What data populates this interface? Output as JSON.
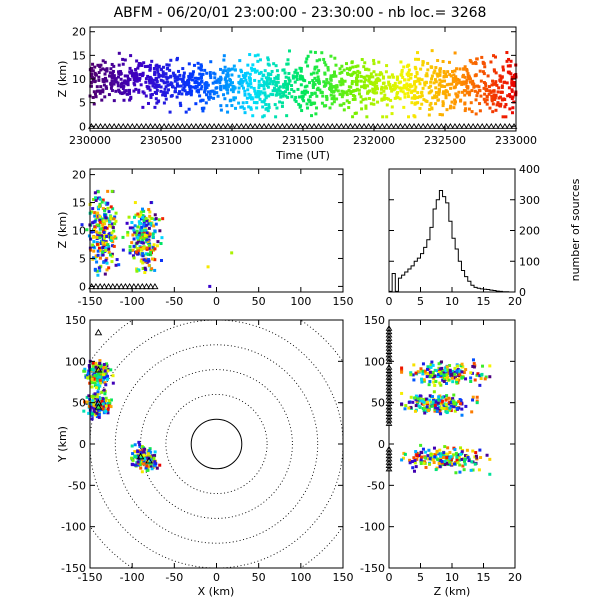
{
  "title": "ABFM - 06/20/01 23:00:00 - 23:30:00 - nb loc.=    3268",
  "chart_data": [
    {
      "id": "time-height",
      "type": "scatter",
      "xlabel": "Time (UT)",
      "ylabel": "Z (km)",
      "xlim": [
        230000,
        233000
      ],
      "ylim": [
        -1,
        21
      ],
      "xticks": [
        "230000",
        "230500",
        "231000",
        "231500",
        "232000",
        "232500",
        "233000"
      ],
      "yticks": [
        "0",
        "5",
        "10",
        "15",
        "20"
      ],
      "color_by": "time (violet → red)",
      "point_groups": [
        {
          "x_range": [
            230000,
            230500
          ],
          "z_range": [
            5,
            14
          ]
        },
        {
          "x_range": [
            230500,
            231000
          ],
          "z_range": [
            4,
            14
          ]
        },
        {
          "x_range": [
            231000,
            231500
          ],
          "z_range": [
            3,
            14
          ]
        },
        {
          "x_range": [
            231500,
            232000
          ],
          "z_range": [
            3,
            14
          ]
        },
        {
          "x_range": [
            232000,
            232500
          ],
          "z_range": [
            3,
            14
          ]
        },
        {
          "x_range": [
            232500,
            233000
          ],
          "z_range": [
            3,
            14
          ]
        }
      ],
      "triangle_markers_at_z": 0
    },
    {
      "id": "x-height",
      "type": "scatter",
      "ylabel": "Z (km)",
      "xlim": [
        -150,
        150
      ],
      "ylim": [
        -1,
        21
      ],
      "xticks": [
        "-150",
        "-100",
        "-50",
        "0",
        "50",
        "100",
        "150"
      ],
      "yticks": [
        "0",
        "5",
        "10",
        "15",
        "20"
      ],
      "clusters": [
        {
          "x_center": -135,
          "z_range": [
            2,
            17
          ]
        },
        {
          "x_center": -85,
          "z_range": [
            2,
            15
          ]
        }
      ],
      "isolated_points": [
        [
          -10,
          3.5
        ],
        [
          -8,
          0
        ],
        [
          18,
          6
        ]
      ],
      "triangle_markers_at_z": 0
    },
    {
      "id": "height-histogram",
      "type": "line",
      "ylabel": "number of sources",
      "xlim": [
        0,
        20
      ],
      "ylim": [
        0,
        400
      ],
      "xticks": [
        "0",
        "5",
        "10",
        "15",
        "20"
      ],
      "yticks": [
        "0",
        "100",
        "200",
        "300",
        "400"
      ],
      "x": [
        0.5,
        1,
        1.5,
        2,
        2.5,
        3,
        3.5,
        4,
        4.5,
        5,
        5.5,
        6,
        6.5,
        7,
        7.5,
        8,
        8.5,
        9,
        9.5,
        10,
        10.5,
        11,
        11.5,
        12,
        12.5,
        13,
        13.5,
        14,
        14.5,
        15,
        15.5,
        16,
        16.5,
        17,
        17.5,
        18,
        18.5,
        19,
        19.5,
        20
      ],
      "values": [
        2,
        60,
        2,
        45,
        55,
        65,
        75,
        85,
        100,
        110,
        125,
        145,
        170,
        210,
        270,
        300,
        330,
        310,
        290,
        230,
        175,
        140,
        100,
        70,
        50,
        35,
        22,
        15,
        12,
        10,
        9,
        8,
        6,
        5,
        3,
        2,
        1,
        1,
        0,
        0
      ]
    },
    {
      "id": "plan-view",
      "type": "scatter",
      "xlabel": "X (km)",
      "ylabel": "Y (km)",
      "xlim": [
        -150,
        150
      ],
      "ylim": [
        -150,
        150
      ],
      "xticks": [
        "-150",
        "-100",
        "-50",
        "0",
        "50",
        "100",
        "150"
      ],
      "yticks": [
        "-150",
        "-100",
        "-50",
        "0",
        "50",
        "100",
        "150"
      ],
      "range_rings_km": [
        30,
        60,
        90,
        120,
        150,
        180
      ],
      "clusters": [
        {
          "x_center": -140,
          "y_center": 85
        },
        {
          "x_center": -140,
          "y_center": 48
        },
        {
          "x_center": -85,
          "y_center": -18
        }
      ],
      "triangle_markers": [
        [
          -140,
          135
        ],
        [
          -140,
          90
        ],
        [
          -140,
          50
        ],
        [
          -140,
          45
        ],
        [
          -90,
          -15
        ],
        [
          -80,
          -20
        ]
      ]
    },
    {
      "id": "height-y",
      "type": "scatter",
      "xlabel": "Z (km)",
      "xlim": [
        0,
        20
      ],
      "ylim": [
        -150,
        150
      ],
      "xticks": [
        "0",
        "5",
        "10",
        "15",
        "20"
      ],
      "yticks": [
        "-150",
        "-100",
        "-50",
        "0",
        "50",
        "100",
        "150"
      ],
      "clusters": [
        {
          "y_center": 85,
          "z_range": [
            2,
            16
          ]
        },
        {
          "y_center": 48,
          "z_range": [
            2,
            14
          ]
        },
        {
          "y_center": -18,
          "z_range": [
            2,
            16
          ]
        }
      ],
      "triangle_markers_at_z": 0
    }
  ]
}
